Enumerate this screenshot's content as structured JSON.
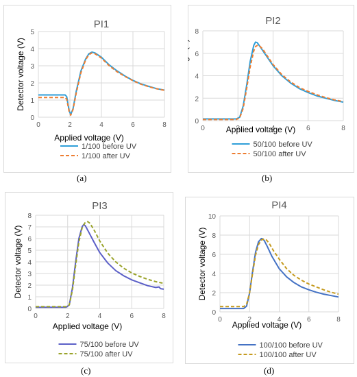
{
  "chart_data": [
    {
      "id": "a",
      "type": "line",
      "title": "PI1",
      "xlabel": "Applied voltage (V)",
      "ylabel": "Detector voltage (V)",
      "xlim": [
        0,
        8
      ],
      "ylim": [
        0,
        5
      ],
      "xticks": [
        0,
        2,
        4,
        6,
        8
      ],
      "yticks": [
        0,
        1,
        2,
        3,
        4,
        5
      ],
      "grid": true,
      "legend": "bottom",
      "caption": "(a)",
      "series": [
        {
          "name": "1/100 before UV",
          "color": "#2e9ed8",
          "dash": "solid",
          "x": [
            0,
            1.7,
            1.8,
            1.95,
            2.05,
            2.2,
            2.4,
            2.7,
            3.0,
            3.2,
            3.4,
            3.6,
            4.0,
            4.5,
            5.0,
            5.5,
            6.0,
            6.5,
            7.0,
            7.5,
            8.0
          ],
          "y": [
            1.3,
            1.3,
            1.2,
            0.4,
            0.15,
            0.5,
            1.5,
            2.7,
            3.4,
            3.7,
            3.8,
            3.75,
            3.5,
            3.05,
            2.7,
            2.4,
            2.15,
            1.95,
            1.8,
            1.67,
            1.58
          ]
        },
        {
          "name": "1/100 after UV",
          "color": "#ed7d31",
          "dash": "dashed",
          "x": [
            0,
            1.7,
            1.8,
            1.95,
            2.05,
            2.2,
            2.4,
            2.7,
            3.0,
            3.2,
            3.4,
            3.6,
            4.0,
            4.5,
            5.0,
            5.5,
            6.0,
            6.5,
            7.0,
            7.5,
            8.0
          ],
          "y": [
            1.15,
            1.15,
            1.05,
            0.35,
            0.12,
            0.45,
            1.4,
            2.6,
            3.35,
            3.65,
            3.75,
            3.7,
            3.45,
            3.0,
            2.65,
            2.38,
            2.13,
            1.93,
            1.78,
            1.66,
            1.57
          ]
        }
      ]
    },
    {
      "id": "b",
      "type": "line",
      "title": "PI2",
      "xlabel": "Applied voltage (V)",
      "ylabel": "Detector voltage (V)",
      "xlim": [
        0,
        8
      ],
      "ylim": [
        0,
        8
      ],
      "xticks": [
        0,
        2,
        4,
        6,
        8
      ],
      "yticks": [
        0,
        2,
        4,
        6,
        8
      ],
      "grid": true,
      "legend": "bottom",
      "caption": "(b)",
      "series": [
        {
          "name": "50/100 before UV",
          "color": "#2e9ed8",
          "dash": "solid",
          "x": [
            0,
            1.9,
            2.1,
            2.3,
            2.5,
            2.7,
            2.9,
            3.0,
            3.1,
            3.3,
            3.6,
            4.0,
            4.5,
            5.0,
            5.5,
            6.0,
            6.5,
            7.0,
            7.5,
            8.0
          ],
          "y": [
            0.15,
            0.15,
            0.3,
            1.3,
            3.2,
            5.3,
            6.7,
            7.0,
            6.95,
            6.5,
            5.8,
            4.9,
            4.0,
            3.35,
            2.85,
            2.5,
            2.2,
            2.0,
            1.8,
            1.65
          ]
        },
        {
          "name": "50/100 after UV",
          "color": "#ed7d31",
          "dash": "dashed",
          "x": [
            0,
            1.9,
            2.1,
            2.3,
            2.5,
            2.7,
            2.9,
            3.0,
            3.1,
            3.2,
            3.4,
            3.7,
            4.0,
            4.5,
            5.0,
            5.5,
            6.0,
            6.5,
            7.0,
            7.5,
            8.0
          ],
          "y": [
            0.1,
            0.1,
            0.25,
            1.1,
            2.9,
            4.8,
            6.2,
            6.6,
            6.7,
            6.7,
            6.4,
            5.7,
            5.0,
            4.1,
            3.45,
            2.95,
            2.6,
            2.3,
            2.05,
            1.85,
            1.7
          ]
        }
      ]
    },
    {
      "id": "c",
      "type": "line",
      "title": "PI3",
      "xlabel": "Applied voltage (V)",
      "ylabel": "Detector voltage (V)",
      "xlim": [
        0,
        8
      ],
      "ylim": [
        0,
        8
      ],
      "xticks": [
        0,
        2,
        4,
        6,
        8
      ],
      "yticks": [
        0,
        1,
        2,
        3,
        4,
        5,
        6,
        7,
        8
      ],
      "grid": true,
      "legend": "bottom",
      "caption": "(c)",
      "series": [
        {
          "name": "75/100 before UV",
          "color": "#5b5fc7",
          "dash": "solid",
          "x": [
            0,
            1.9,
            2.1,
            2.3,
            2.5,
            2.7,
            2.9,
            3.0,
            3.1,
            3.3,
            3.6,
            4.0,
            4.5,
            5.0,
            5.5,
            6.0,
            6.5,
            7.0,
            7.5,
            7.7,
            7.8,
            8.0
          ],
          "y": [
            0.1,
            0.1,
            0.3,
            1.8,
            4.0,
            6.0,
            7.0,
            7.2,
            7.1,
            6.6,
            5.8,
            4.8,
            3.9,
            3.25,
            2.8,
            2.45,
            2.2,
            1.95,
            1.8,
            1.85,
            1.7,
            1.65
          ]
        },
        {
          "name": "75/100 after UV",
          "color": "#9aa32a",
          "dash": "dashed",
          "x": [
            0,
            1.9,
            2.1,
            2.3,
            2.5,
            2.7,
            2.9,
            3.1,
            3.25,
            3.4,
            3.7,
            4.0,
            4.5,
            5.0,
            5.5,
            6.0,
            6.5,
            7.0,
            7.5,
            8.0
          ],
          "y": [
            0.15,
            0.15,
            0.3,
            1.6,
            3.7,
            5.7,
            6.9,
            7.4,
            7.45,
            7.3,
            6.6,
            5.8,
            4.75,
            4.0,
            3.45,
            3.05,
            2.75,
            2.5,
            2.3,
            2.15
          ]
        }
      ]
    },
    {
      "id": "d",
      "type": "line",
      "title": "PI4",
      "xlabel": "Applied voltage (V)",
      "ylabel": "Detector voltage (V)",
      "xlim": [
        0,
        8
      ],
      "ylim": [
        0,
        10
      ],
      "xticks": [
        0,
        2,
        4,
        6,
        8
      ],
      "yticks": [
        0,
        2,
        4,
        6,
        8,
        10
      ],
      "grid": true,
      "legend": "bottom",
      "caption": "(d)",
      "series": [
        {
          "name": "100/100 before UV",
          "color": "#4472c4",
          "dash": "solid",
          "x": [
            0,
            1.6,
            1.8,
            2.0,
            2.2,
            2.4,
            2.6,
            2.8,
            2.9,
            3.0,
            3.2,
            3.5,
            4.0,
            4.5,
            5.0,
            5.5,
            6.0,
            6.5,
            7.0,
            7.5,
            8.0
          ],
          "y": [
            0.35,
            0.35,
            0.6,
            2.0,
            4.2,
            6.2,
            7.3,
            7.65,
            7.6,
            7.4,
            6.8,
            5.8,
            4.5,
            3.65,
            3.05,
            2.6,
            2.3,
            2.05,
            1.85,
            1.7,
            1.55
          ]
        },
        {
          "name": "100/100 after UV",
          "color": "#c59a1e",
          "dash": "dashed",
          "x": [
            0,
            1.6,
            1.8,
            2.0,
            2.2,
            2.4,
            2.6,
            2.8,
            3.0,
            3.1,
            3.3,
            3.6,
            4.0,
            4.5,
            5.0,
            5.5,
            6.0,
            6.5,
            7.0,
            7.5,
            8.0
          ],
          "y": [
            0.55,
            0.55,
            0.8,
            2.0,
            4.0,
            5.9,
            7.0,
            7.5,
            7.6,
            7.55,
            7.2,
            6.4,
            5.5,
            4.5,
            3.8,
            3.3,
            2.9,
            2.6,
            2.3,
            2.05,
            1.85
          ]
        }
      ]
    }
  ]
}
